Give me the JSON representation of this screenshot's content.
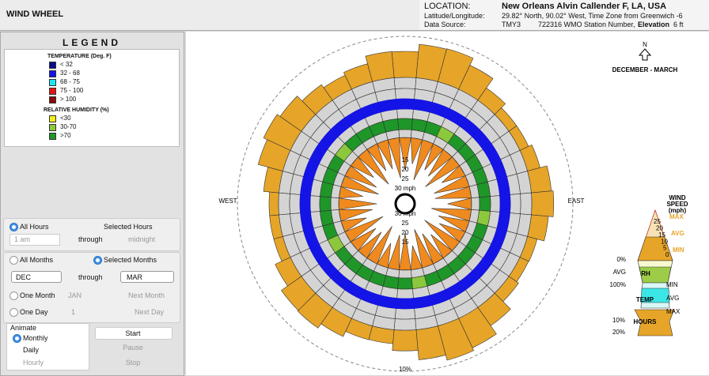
{
  "header": {
    "title": "WIND WHEEL",
    "location_label": "LOCATION:",
    "location": "New Orleans Alvin Callender F, LA, USA",
    "latlon_label": "Latitude/Longitude:",
    "latlon": "29.82° North, 90.02° West, Time Zone from Greenwich -6",
    "source_label": "Data Source:",
    "source": "TMY3",
    "station": "722316 WMO Station Number,",
    "elevation_label": "Elevation",
    "elevation": "6 ft"
  },
  "legend": {
    "title": "LEGEND",
    "temperature": {
      "title": "TEMPERATURE (Deg. F)",
      "items": [
        {
          "label": "< 32",
          "color": "#0a0a8c"
        },
        {
          "label": "32  -  68",
          "color": "#1414e6"
        },
        {
          "label": "68  -  75",
          "color": "#1ee6f0"
        },
        {
          "label": "75  -  100",
          "color": "#e61414"
        },
        {
          "label": "> 100",
          "color": "#8c0a0a"
        }
      ]
    },
    "humidity": {
      "title": "RELATIVE HUMIDITY (%)",
      "items": [
        {
          "label": "<30",
          "color": "#f0f014"
        },
        {
          "label": "30-70",
          "color": "#8cc83c"
        },
        {
          "label": ">70",
          "color": "#1e9628"
        }
      ]
    }
  },
  "controls": {
    "all_hours": "All Hours",
    "selected_hours": "Selected Hours",
    "hour_from": "1 am",
    "through_1": "through",
    "hour_to": "midnight",
    "all_months": "All Months",
    "selected_months": "Selected Months",
    "month_from": "DEC",
    "through_2": "through",
    "month_to": "MAR",
    "one_month": "One Month",
    "month": "JAN",
    "next_month": "Next Month",
    "one_day": "One Day",
    "day": "1",
    "next_day": "Next Day",
    "animate": {
      "title": "Animate",
      "monthly": "Monthly",
      "daily": "Daily",
      "hourly": "Hourly",
      "start": "Start",
      "pause": "Pause",
      "stop": "Stop"
    }
  },
  "wheel": {
    "north": "N",
    "period": "DECEMBER - MARCH",
    "west": "WEST",
    "east": "EAST",
    "rings_top": [
      "15",
      "20",
      "25",
      "30 mph"
    ],
    "rings_bottom": [
      "30 mph",
      "25",
      "20",
      "15"
    ],
    "outer": "10%"
  },
  "speed_legend": {
    "title": [
      "WIND",
      "SPEED",
      "(mph)"
    ],
    "speeds": [
      "25",
      "20",
      "15",
      "10",
      "5",
      "0"
    ],
    "speed_marks": [
      "MAX",
      "AVG",
      "MIN"
    ],
    "rh": "RH",
    "temp": "TEMP",
    "hours": "HOURS",
    "left": [
      "0%",
      "AVG",
      "100%"
    ],
    "right": [
      "MIN",
      "AVG",
      "MAX"
    ],
    "hours_left": [
      "10%",
      "20%"
    ]
  }
}
